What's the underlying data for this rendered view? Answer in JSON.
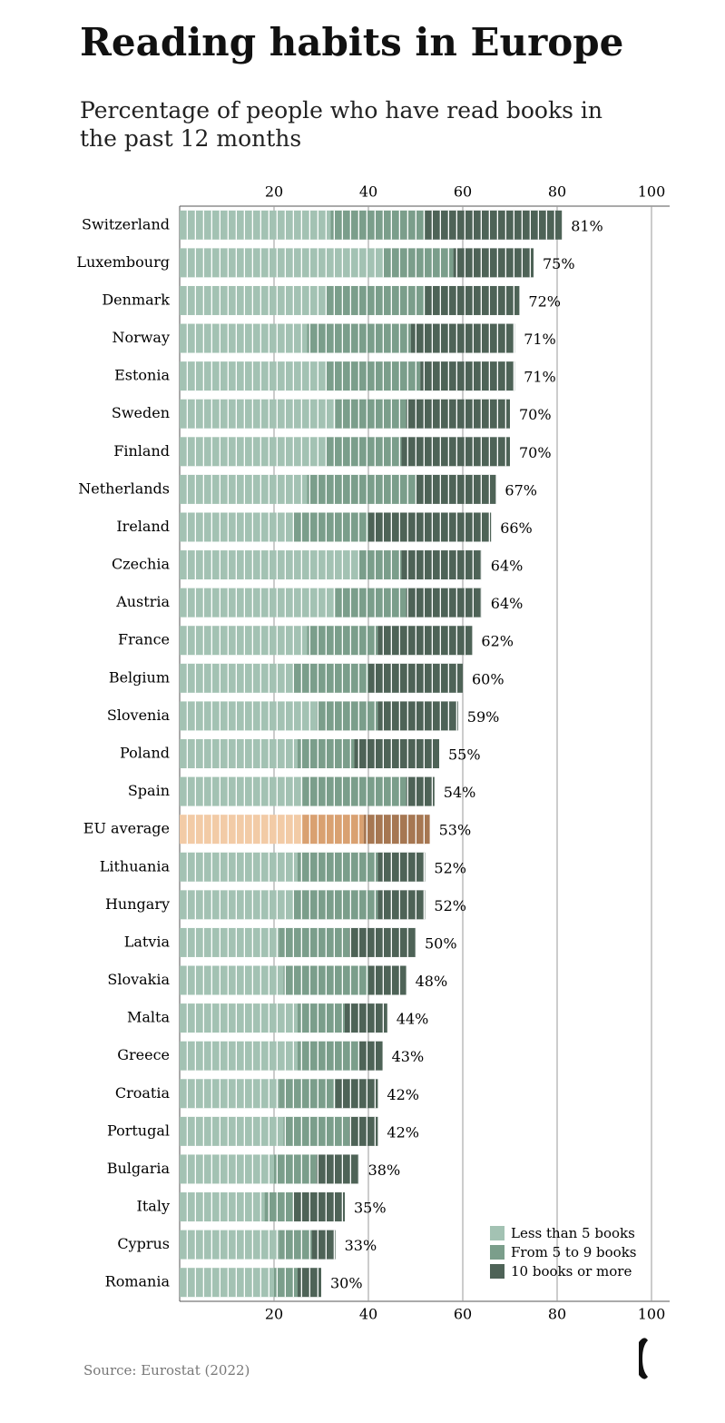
{
  "chart_data": {
    "type": "stacked-bar-horizontal",
    "title": "Reading habits in Europe",
    "subtitle": "Percentage of people who have read books in the past 12 months",
    "source": "Source: Eurostat (2022)",
    "categories": [
      "Switzerland",
      "Luxembourg",
      "Denmark",
      "Norway",
      "Estonia",
      "Sweden",
      "Finland",
      "Netherlands",
      "Ireland",
      "Czechia",
      "Austria",
      "France",
      "Belgium",
      "Slovenia",
      "Poland",
      "Spain",
      "EU average",
      "Lithuania",
      "Hungary",
      "Latvia",
      "Slovakia",
      "Malta",
      "Greece",
      "Croatia",
      "Portugal",
      "Bulgaria",
      "Italy",
      "Cyprus",
      "Romania"
    ],
    "series": [
      {
        "name": "Less than 5 books",
        "color": "#a3c2b3",
        "values": [
          32,
          43,
          31,
          27,
          31,
          33,
          31,
          27,
          24,
          38,
          33,
          27,
          24,
          29,
          25,
          26,
          26,
          25,
          24,
          21,
          22,
          25,
          25,
          21,
          22,
          20,
          18,
          21,
          20
        ]
      },
      {
        "name": "From 5 to 9 books",
        "color": "#7b9e8b",
        "values": [
          20,
          15,
          21,
          22,
          20,
          15,
          16,
          23,
          16,
          9,
          15,
          15,
          16,
          13,
          12,
          22,
          13,
          17,
          18,
          15,
          18,
          10,
          13,
          12,
          14,
          9,
          6,
          7,
          5
        ]
      },
      {
        "name": "10 books or more",
        "color": "#4e6357",
        "values": [
          29,
          17,
          20,
          22,
          20,
          22,
          23,
          17,
          26,
          17,
          16,
          20,
          20,
          17,
          18,
          6,
          14,
          10,
          10,
          14,
          8,
          9,
          5,
          9,
          6,
          9,
          11,
          5,
          5
        ]
      }
    ],
    "totals": [
      81,
      75,
      72,
      71,
      71,
      70,
      70,
      67,
      66,
      64,
      64,
      62,
      60,
      59,
      55,
      54,
      53,
      52,
      52,
      50,
      48,
      44,
      43,
      42,
      42,
      38,
      35,
      33,
      30
    ],
    "total_labels": [
      "81%",
      "75%",
      "72%",
      "71%",
      "71%",
      "70%",
      "70%",
      "67%",
      "66%",
      "64%",
      "64%",
      "62%",
      "60%",
      "59%",
      "55%",
      "54%",
      "53%",
      "52%",
      "52%",
      "50%",
      "48%",
      "44%",
      "43%",
      "42%",
      "42%",
      "38%",
      "35%",
      "33%",
      "30%"
    ],
    "highlight": "EU average",
    "highlight_colors": [
      "#f2cba6",
      "#d9a171",
      "#a67752"
    ],
    "xlim": [
      0,
      100
    ],
    "xticks": [
      20,
      40,
      60,
      80,
      100
    ],
    "grid": true,
    "legend": "lower right"
  }
}
